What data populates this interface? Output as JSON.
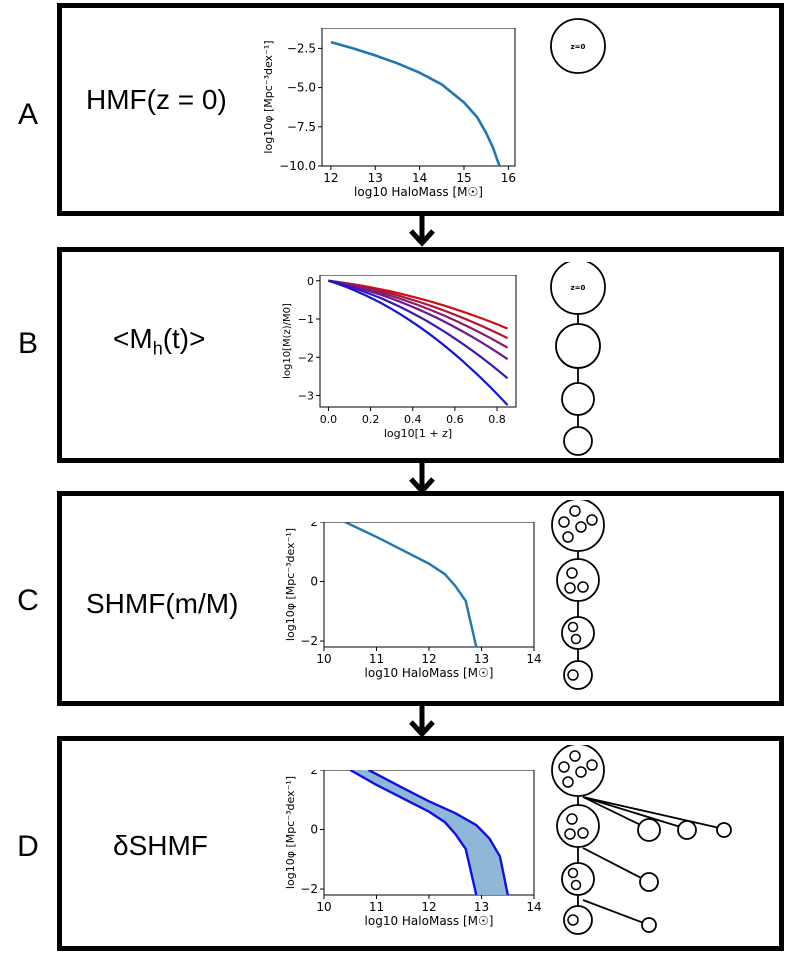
{
  "panels": [
    {
      "letter": "A",
      "title": "HMF(z = 0)"
    },
    {
      "letter": "B",
      "title_main": "<M",
      "title_sub": "h",
      "title_end": "(t)>"
    },
    {
      "letter": "C",
      "title": "SHMF(m/M)"
    },
    {
      "letter": "D",
      "title": "δSHMF"
    }
  ],
  "z0_label": "z=0",
  "chart_data": [
    {
      "type": "line",
      "panel": "A",
      "xlabel": "log10 HaloMass [M☉]",
      "ylabel": "log10φ [Mpc⁻³dex⁻¹]",
      "xlim": [
        11.8,
        16.15
      ],
      "ylim": [
        -10.0,
        -1.2
      ],
      "xticks": [
        "12",
        "13",
        "14",
        "15",
        "16"
      ],
      "yticks": [
        "−2.5",
        "−5.0",
        "−7.5",
        "−10.0"
      ],
      "series": [
        {
          "x": [
            12,
            12.5,
            13,
            13.5,
            14,
            14.5,
            15,
            15.3,
            15.5,
            15.65,
            15.8
          ],
          "y": [
            -2.1,
            -2.5,
            -2.95,
            -3.45,
            -4.05,
            -4.8,
            -5.95,
            -6.9,
            -7.9,
            -8.8,
            -10.0
          ]
        }
      ]
    },
    {
      "type": "line",
      "panel": "B",
      "xlabel": "log10[1 + z]",
      "ylabel": "log10[M(z)/M0]",
      "xlim": [
        -0.04,
        0.89
      ],
      "ylim": [
        -3.3,
        0.15
      ],
      "xticks": [
        "0.0",
        "0.2",
        "0.4",
        "0.6",
        "0.8"
      ],
      "yticks": [
        "0",
        "−1",
        "−2",
        "−3"
      ],
      "series": [
        {
          "x": [
            0,
            0.85
          ],
          "y": [
            0,
            -1.25
          ]
        },
        {
          "x": [
            0,
            0.85
          ],
          "y": [
            0,
            -1.5
          ]
        },
        {
          "x": [
            0,
            0.85
          ],
          "y": [
            0,
            -1.75
          ]
        },
        {
          "x": [
            0,
            0.85
          ],
          "y": [
            0,
            -2.05
          ]
        },
        {
          "x": [
            0,
            0.85
          ],
          "y": [
            0,
            -2.55
          ]
        },
        {
          "x": [
            0,
            0.85
          ],
          "y": [
            0,
            -3.25
          ]
        }
      ]
    },
    {
      "type": "line",
      "panel": "C",
      "xlabel": "log10 HaloMass [M☉]",
      "ylabel": "log10φ [Mpc⁻³dex⁻¹]",
      "xlim": [
        10,
        14
      ],
      "ylim": [
        -2.2,
        2
      ],
      "xticks": [
        "10",
        "11",
        "12",
        "13",
        "14"
      ],
      "yticks": [
        "2",
        "0",
        "−2"
      ],
      "series": [
        {
          "x": [
            10.4,
            11,
            11.5,
            12,
            12.3,
            12.5,
            12.7,
            12.9
          ],
          "y": [
            2,
            1.5,
            1.05,
            0.6,
            0.25,
            -0.15,
            -0.65,
            -2.2
          ]
        }
      ]
    },
    {
      "type": "area",
      "panel": "D",
      "xlabel": "log10 HaloMass [M☉]",
      "ylabel": "log10φ [Mpc⁻³dex⁻¹]",
      "xlim": [
        10,
        14
      ],
      "ylim": [
        -2.2,
        2
      ],
      "xticks": [
        "10",
        "11",
        "12",
        "13",
        "14"
      ],
      "yticks": [
        "2",
        "0",
        "−2"
      ],
      "series": [
        {
          "name": "lower",
          "x": [
            10.5,
            11,
            11.5,
            12,
            12.3,
            12.5,
            12.7,
            12.9
          ],
          "y": [
            2,
            1.5,
            1.05,
            0.6,
            0.25,
            -0.15,
            -0.65,
            -2.2
          ]
        },
        {
          "name": "upper",
          "x": [
            10.85,
            11.5,
            12,
            12.5,
            12.9,
            13.15,
            13.35,
            13.5
          ],
          "y": [
            2,
            1.4,
            0.95,
            0.55,
            0.15,
            -0.3,
            -0.9,
            -2.2
          ]
        }
      ]
    }
  ]
}
